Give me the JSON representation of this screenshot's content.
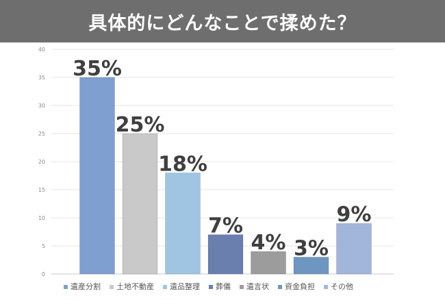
{
  "title": "具体的にどんなことで揉めた？",
  "chart_data": {
    "type": "bar",
    "categories": [
      "遺産分割",
      "土地不動産",
      "遺品整理",
      "葬儀",
      "遺言状",
      "資金負担",
      "その他"
    ],
    "values": [
      35,
      25,
      18,
      7,
      4,
      3,
      9
    ],
    "data_labels": [
      "35%",
      "25%",
      "18%",
      "7%",
      "4%",
      "3%",
      "9%"
    ],
    "colors": [
      "#7f9fd0",
      "#c9c9c9",
      "#9fc5e3",
      "#6b7fae",
      "#9c9c9c",
      "#6f96c0",
      "#a2b6dc"
    ],
    "ylim": [
      0,
      40
    ],
    "yticks": [
      0,
      5,
      10,
      15,
      20,
      25,
      30,
      35,
      40
    ],
    "grid": true,
    "legend_position": "bottom"
  }
}
